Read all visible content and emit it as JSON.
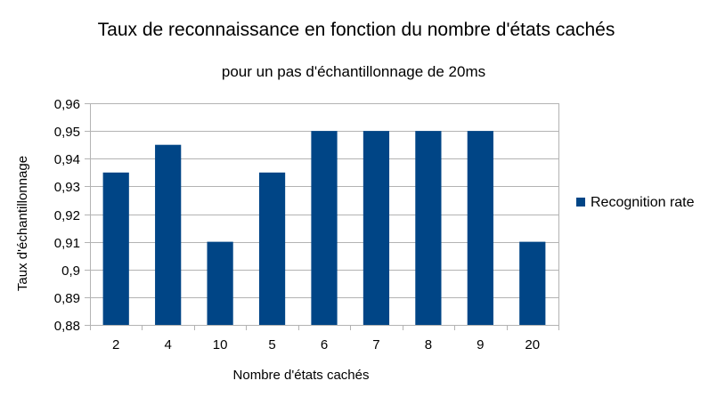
{
  "chart_data": {
    "type": "bar",
    "title": "Taux de reconnaissance en fonction du nombre d'états cachés",
    "subtitle": "pour un pas d'échantillonnage de 20ms",
    "xlabel": "Nombre d'états cachés",
    "ylabel": "Taux d'échantillonnage",
    "categories": [
      "2",
      "4",
      "10",
      "5",
      "6",
      "7",
      "8",
      "9",
      "20"
    ],
    "series": [
      {
        "name": "Recognition rate",
        "values": [
          0.935,
          0.945,
          0.91,
          0.935,
          0.95,
          0.95,
          0.95,
          0.95,
          0.91
        ],
        "color": "#004586"
      }
    ],
    "ylim": [
      0.88,
      0.96
    ],
    "ytick_labels": [
      "0,88",
      "0,89",
      "0,9",
      "0,91",
      "0,92",
      "0,93",
      "0,94",
      "0,95",
      "0,96"
    ],
    "grid": true,
    "legend_position": "right",
    "colors": {
      "bar": "#004586",
      "grid": "#b3b3b3",
      "axis": "#b3b3b3"
    }
  }
}
